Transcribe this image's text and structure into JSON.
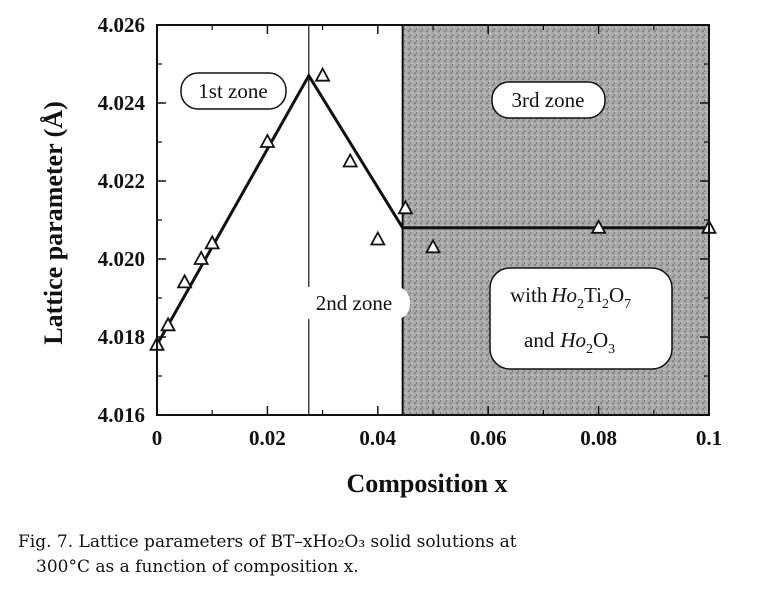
{
  "chart_data": {
    "type": "scatter",
    "title": "",
    "xlabel": "Composition x",
    "ylabel": "Lattice parameter (Å)",
    "xlim": [
      0,
      0.1
    ],
    "ylim": [
      4.016,
      4.026
    ],
    "xticks": [
      "0",
      "0.02",
      "0.04",
      "0.06",
      "0.08",
      "0.1"
    ],
    "xtick_values": [
      0,
      0.02,
      0.04,
      0.06,
      0.08,
      0.1
    ],
    "yticks": [
      "4.016",
      "4.018",
      "4.020",
      "4.022",
      "4.024",
      "4.026"
    ],
    "ytick_values": [
      4.016,
      4.018,
      4.02,
      4.022,
      4.024,
      4.026
    ],
    "grid": false,
    "series": [
      {
        "marker": "open-triangle",
        "x": [
          0,
          0.002,
          0.005,
          0.008,
          0.01,
          0.02,
          0.03,
          0.035,
          0.04,
          0.045,
          0.05,
          0.08,
          0.1
        ],
        "y": [
          4.0178,
          4.0183,
          4.0194,
          4.02,
          4.0204,
          4.023,
          4.0247,
          4.0225,
          4.0205,
          4.0213,
          4.0203,
          4.0208,
          4.0208
        ]
      }
    ],
    "fit_line": {
      "x": [
        0,
        0.0275,
        0.0445,
        0.1
      ],
      "y": [
        4.0178,
        4.0247,
        4.0208,
        4.0208
      ]
    },
    "zone_divider_x": [
      0.0275
    ],
    "shaded_region_x": [
      0.0445,
      0.1
    ],
    "zone_labels": [
      "1st zone",
      "2nd zone",
      "3rd zone"
    ],
    "annotation": {
      "line1": "with",
      "ho": "Ho",
      "sub2": "2",
      "ti": "Ti",
      "sub2b": "2",
      "o": "O",
      "sub7": "7",
      "and": "and",
      "ho2": "Ho",
      "sub2c": "2",
      "o2": "O",
      "sub3": "3"
    }
  },
  "caption": {
    "line1": "Fig. 7.  Lattice parameters of BT–xHo₂O₃ solid solutions at",
    "line2": "300°C as a function of composition x."
  }
}
